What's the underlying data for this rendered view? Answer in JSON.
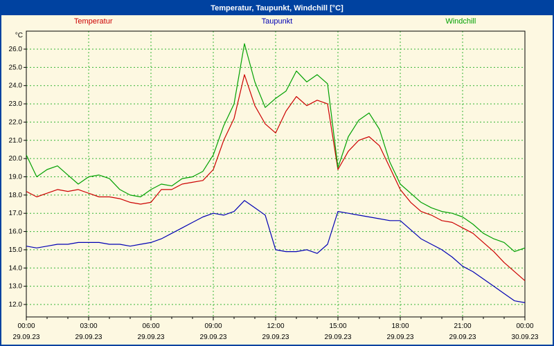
{
  "chart_data": {
    "type": "line",
    "title": "Temperatur, Taupunkt, Windchill [°C]",
    "ylabel": "°C",
    "ylim": [
      12,
      26
    ],
    "ytick_step": 1,
    "grid": "dashed",
    "legend_position": "top",
    "colors": {
      "background": "#fdf8e1",
      "titlebar": "#0042a0",
      "border": "#0042a0",
      "grid": "#33b333",
      "axis": "#000000"
    },
    "x_hours": [
      0,
      0.5,
      1,
      1.5,
      2,
      2.5,
      3,
      3.5,
      4,
      4.5,
      5,
      5.5,
      6,
      6.5,
      7,
      7.5,
      8,
      8.5,
      9,
      9.5,
      10,
      10.5,
      11,
      11.5,
      12,
      12.5,
      13,
      13.5,
      14,
      14.5,
      15,
      15.5,
      16,
      16.5,
      17,
      17.5,
      18,
      18.5,
      19,
      19.5,
      20,
      20.5,
      21,
      21.5,
      22,
      22.5,
      23,
      23.5,
      24
    ],
    "series": [
      {
        "name": "Temperatur",
        "color": "#cc0000",
        "values": [
          18.2,
          17.9,
          18.1,
          18.3,
          18.2,
          18.3,
          18.1,
          17.9,
          17.9,
          17.8,
          17.6,
          17.5,
          17.6,
          18.3,
          18.3,
          18.6,
          18.7,
          18.8,
          19.4,
          21.0,
          22.2,
          24.6,
          22.9,
          21.9,
          21.4,
          22.6,
          23.4,
          22.9,
          23.2,
          23.0,
          19.4,
          20.4,
          21.0,
          21.2,
          20.7,
          19.5,
          18.3,
          17.6,
          17.1,
          16.9,
          16.6,
          16.5,
          16.2,
          15.9,
          15.4,
          14.9,
          14.3,
          13.8,
          13.3
        ]
      },
      {
        "name": "Taupunkt",
        "color": "#0000b4",
        "values": [
          15.2,
          15.1,
          15.2,
          15.3,
          15.3,
          15.4,
          15.4,
          15.4,
          15.3,
          15.3,
          15.2,
          15.3,
          15.4,
          15.6,
          15.9,
          16.2,
          16.5,
          16.8,
          17.0,
          16.9,
          17.1,
          17.7,
          17.3,
          16.9,
          15.0,
          14.9,
          14.9,
          15.0,
          14.8,
          15.3,
          17.1,
          17.0,
          16.9,
          16.8,
          16.7,
          16.6,
          16.6,
          16.1,
          15.6,
          15.3,
          15.0,
          14.6,
          14.1,
          13.8,
          13.4,
          13.0,
          12.6,
          12.2,
          12.1
        ]
      },
      {
        "name": "Windchill",
        "color": "#00a000",
        "values": [
          20.2,
          19.0,
          19.4,
          19.6,
          19.1,
          18.6,
          19.0,
          19.1,
          18.9,
          18.3,
          18.0,
          17.9,
          18.3,
          18.6,
          18.5,
          18.9,
          19.0,
          19.3,
          20.2,
          21.8,
          23.0,
          26.3,
          24.2,
          22.8,
          23.3,
          23.7,
          24.8,
          24.2,
          24.6,
          24.1,
          19.5,
          21.2,
          22.1,
          22.5,
          21.6,
          19.8,
          18.6,
          18.1,
          17.6,
          17.3,
          17.1,
          17.0,
          16.8,
          16.4,
          15.9,
          15.6,
          15.4,
          14.9,
          15.1
        ]
      }
    ],
    "xticks": [
      {
        "hour": 0,
        "time": "00:00",
        "date": "29.09.23"
      },
      {
        "hour": 3,
        "time": "03:00",
        "date": "29.09.23"
      },
      {
        "hour": 6,
        "time": "06:00",
        "date": "29.09.23"
      },
      {
        "hour": 9,
        "time": "09:00",
        "date": "29.09.23"
      },
      {
        "hour": 12,
        "time": "12:00",
        "date": "29.09.23"
      },
      {
        "hour": 15,
        "time": "15:00",
        "date": "29.09.23"
      },
      {
        "hour": 18,
        "time": "18:00",
        "date": "29.09.23"
      },
      {
        "hour": 21,
        "time": "21:00",
        "date": "29.09.23"
      },
      {
        "hour": 24,
        "time": "00:00",
        "date": "30.09.23"
      }
    ]
  }
}
